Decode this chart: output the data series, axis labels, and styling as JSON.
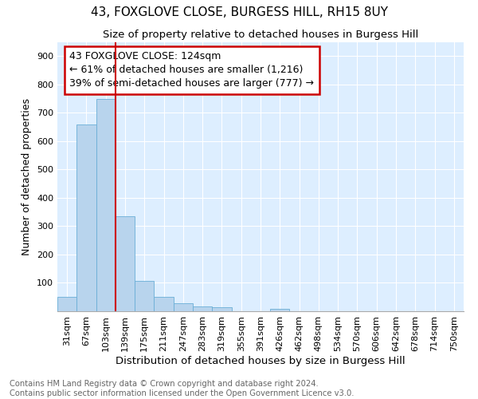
{
  "title": "43, FOXGLOVE CLOSE, BURGESS HILL, RH15 8UY",
  "subtitle": "Size of property relative to detached houses in Burgess Hill",
  "xlabel": "Distribution of detached houses by size in Burgess Hill",
  "ylabel": "Number of detached properties",
  "footer_line1": "Contains HM Land Registry data © Crown copyright and database right 2024.",
  "footer_line2": "Contains public sector information licensed under the Open Government Licence v3.0.",
  "bar_labels": [
    "31sqm",
    "67sqm",
    "103sqm",
    "139sqm",
    "175sqm",
    "211sqm",
    "247sqm",
    "283sqm",
    "319sqm",
    "355sqm",
    "391sqm",
    "426sqm",
    "462sqm",
    "498sqm",
    "534sqm",
    "570sqm",
    "606sqm",
    "642sqm",
    "678sqm",
    "714sqm",
    "750sqm"
  ],
  "bar_values": [
    52,
    660,
    750,
    335,
    108,
    52,
    27,
    18,
    13,
    0,
    0,
    8,
    0,
    0,
    0,
    0,
    0,
    0,
    0,
    0,
    0
  ],
  "bar_color": "#b8d4ed",
  "bar_edge_color": "#6aaed6",
  "property_line_color": "#cc0000",
  "annotation_line1": "43 FOXGLOVE CLOSE: 124sqm",
  "annotation_line2": "← 61% of detached houses are smaller (1,216)",
  "annotation_line3": "39% of semi-detached houses are larger (777) →",
  "annotation_box_color": "#cc0000",
  "background_color": "#ddeeff",
  "ylim": [
    0,
    950
  ],
  "yticks": [
    0,
    100,
    200,
    300,
    400,
    500,
    600,
    700,
    800,
    900
  ],
  "title_fontsize": 11,
  "subtitle_fontsize": 9.5,
  "xlabel_fontsize": 9.5,
  "ylabel_fontsize": 9,
  "tick_fontsize": 8,
  "annotation_fontsize": 9,
  "footer_fontsize": 7.2
}
